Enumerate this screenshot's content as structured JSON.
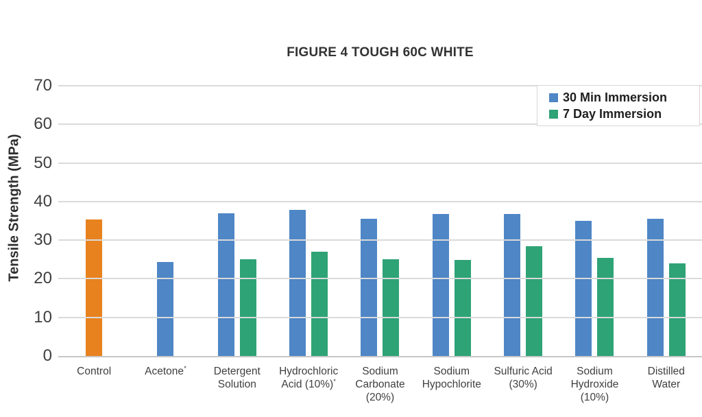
{
  "chart_data": {
    "type": "bar",
    "title": "FIGURE 4 TOUGH 60C WHITE",
    "xlabel": "",
    "ylabel": "Tensile Strength (MPa)",
    "ylim": [
      0,
      70
    ],
    "yticks": [
      0,
      10,
      20,
      30,
      40,
      50,
      60,
      70
    ],
    "grid": true,
    "legend_position": "top-right",
    "categories": [
      "Control",
      "Acetone*",
      "Detergent Solution",
      "Hydrochloric Acid (10%)*",
      "Sodium Carbonate (20%)",
      "Sodium Hypochlorite",
      "Sulfuric Acid (30%)",
      "Sodium Hydroxide (10%)",
      "Distilled Water"
    ],
    "series": [
      {
        "name": "30 Min Immersion",
        "color": "#4E86C6",
        "values": [
          35.4,
          24.4,
          37.0,
          37.8,
          35.5,
          36.7,
          36.8,
          35.0,
          35.5
        ]
      },
      {
        "name": "7 Day Immersion",
        "color": "#2EA376",
        "values": [
          null,
          null,
          25.0,
          27.1,
          25.0,
          24.8,
          28.5,
          25.5,
          24.0
        ]
      }
    ],
    "bar_color_overrides": [
      {
        "category": "Control",
        "series": "30 Min Immersion",
        "color": "#E8821E"
      }
    ]
  },
  "colors": {
    "gridline": "#DADADA",
    "baseline": "#C6C6C6",
    "axis_text": "#3F3F3F"
  }
}
